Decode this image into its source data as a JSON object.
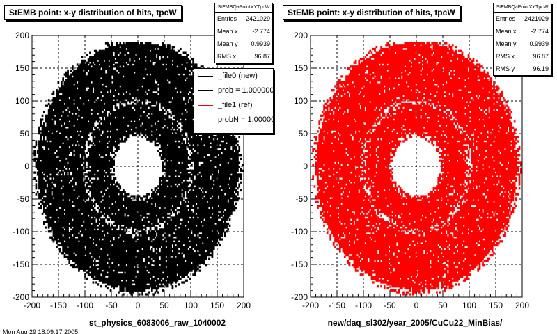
{
  "chart_data": [
    {
      "type": "scatter",
      "title": "StEMB point: x-y distribution of hits, tpcW",
      "xlabel": "st_physics_6083006_raw_1040002",
      "ylabel": "",
      "xlim": [
        -200,
        200
      ],
      "ylim": [
        -200,
        200
      ],
      "xticks": [
        -200,
        -150,
        -100,
        -50,
        0,
        50,
        100,
        150,
        200
      ],
      "yticks": [
        -200,
        -150,
        -100,
        -50,
        0,
        50,
        100,
        150,
        200
      ],
      "grid": true,
      "series": [
        {
          "name": "_file0 (new)",
          "color": "#000000"
        }
      ],
      "distribution": {
        "shape": "annulus",
        "inner_radius": 45,
        "outer_radius": 190,
        "outer_flat_top": 190
      },
      "stats": {
        "title": "StEMBQaPointXYTpcW",
        "rows": [
          {
            "label": "Entries",
            "value": "2421029"
          },
          {
            "label": "Mean x",
            "value": "-2.774"
          },
          {
            "label": "Mean y",
            "value": "0.9939"
          },
          {
            "label": "RMS x",
            "value": "96.87"
          }
        ]
      },
      "legend": {
        "placement": "top-right",
        "entries": [
          {
            "label": "_file0 (new)",
            "color": "#000000"
          },
          {
            "label": "prob = 1.000000",
            "color": "#000000"
          },
          {
            "label": "_file1 (ref)",
            "color": "#ff0000"
          },
          {
            "label": "probN = 1.000000",
            "color": "#ff0000"
          }
        ]
      }
    },
    {
      "type": "scatter",
      "title": "StEMB point: x-y distribution of hits, tpcW",
      "xlabel": "new/daq_sl302/year_2005/CuCu22_MinBias/",
      "ylabel": "",
      "xlim": [
        -200,
        200
      ],
      "ylim": [
        -200,
        200
      ],
      "xticks": [
        -200,
        -150,
        -100,
        -50,
        0,
        50,
        100,
        150,
        200
      ],
      "yticks": [
        -200,
        -150,
        -100,
        -50,
        0,
        50,
        100,
        150,
        200
      ],
      "grid": true,
      "series": [
        {
          "name": "_file1 (ref)",
          "color": "#ff0000"
        }
      ],
      "distribution": {
        "shape": "annulus",
        "inner_radius": 45,
        "outer_radius": 190,
        "outer_flat_top": 190
      },
      "stats": {
        "title": "StEMBQaPointXYTpcW",
        "rows": [
          {
            "label": "Entries",
            "value": "2421029"
          },
          {
            "label": "Mean x",
            "value": "-2.774"
          },
          {
            "label": "Mean y",
            "value": "0.9939"
          },
          {
            "label": "RMS x",
            "value": "96.87"
          },
          {
            "label": "RMS y",
            "value": "96.19"
          }
        ]
      }
    }
  ],
  "footer": "Mon Aug 29 18:09:17 2005"
}
